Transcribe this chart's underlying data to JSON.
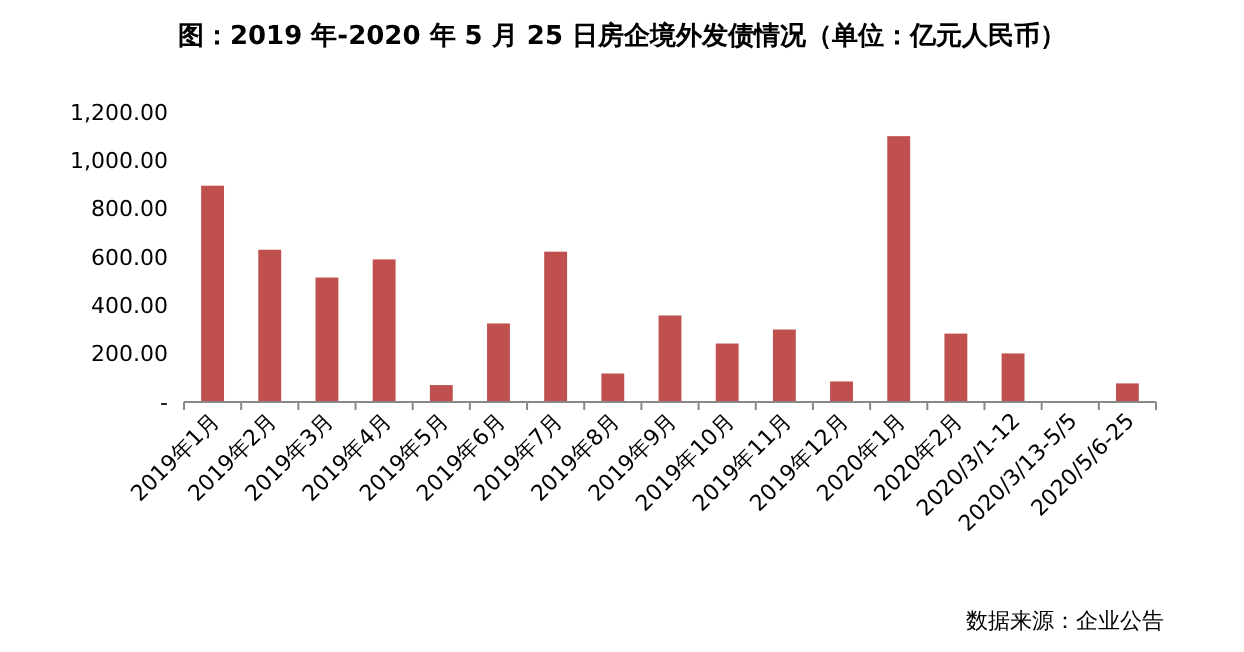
{
  "chart_data": {
    "type": "bar",
    "title": "图：2019 年-2020 年 5 月 25 日房企境外发债情况（单位：亿元人民币）",
    "categories": [
      "2019年1月",
      "2019年2月",
      "2019年3月",
      "2019年4月",
      "2019年5月",
      "2019年6月",
      "2019年7月",
      "2019年8月",
      "2019年9月",
      "2019年10月",
      "2019年11月",
      "2019年12月",
      "2020年1月",
      "2020年2月",
      "2020/3/1-12",
      "2020/3/13-5/5",
      "2020/5/6-25"
    ],
    "values": [
      895,
      630,
      515,
      590,
      70,
      325,
      622,
      118,
      358,
      242,
      300,
      85,
      1100,
      283,
      201,
      0,
      77
    ],
    "color": "#c0504d",
    "ylim": [
      0,
      1200
    ],
    "yticks": [
      {
        "value": 0,
        "label": "-"
      },
      {
        "value": 200,
        "label": "200.00"
      },
      {
        "value": 400,
        "label": "400.00"
      },
      {
        "value": 600,
        "label": "600.00"
      },
      {
        "value": 800,
        "label": "800.00"
      },
      {
        "value": 1000,
        "label": "1,000.00"
      },
      {
        "value": 1200,
        "label": "1,200.00"
      }
    ],
    "grid": false,
    "annotations": [
      "数据来源：企业公告"
    ]
  }
}
